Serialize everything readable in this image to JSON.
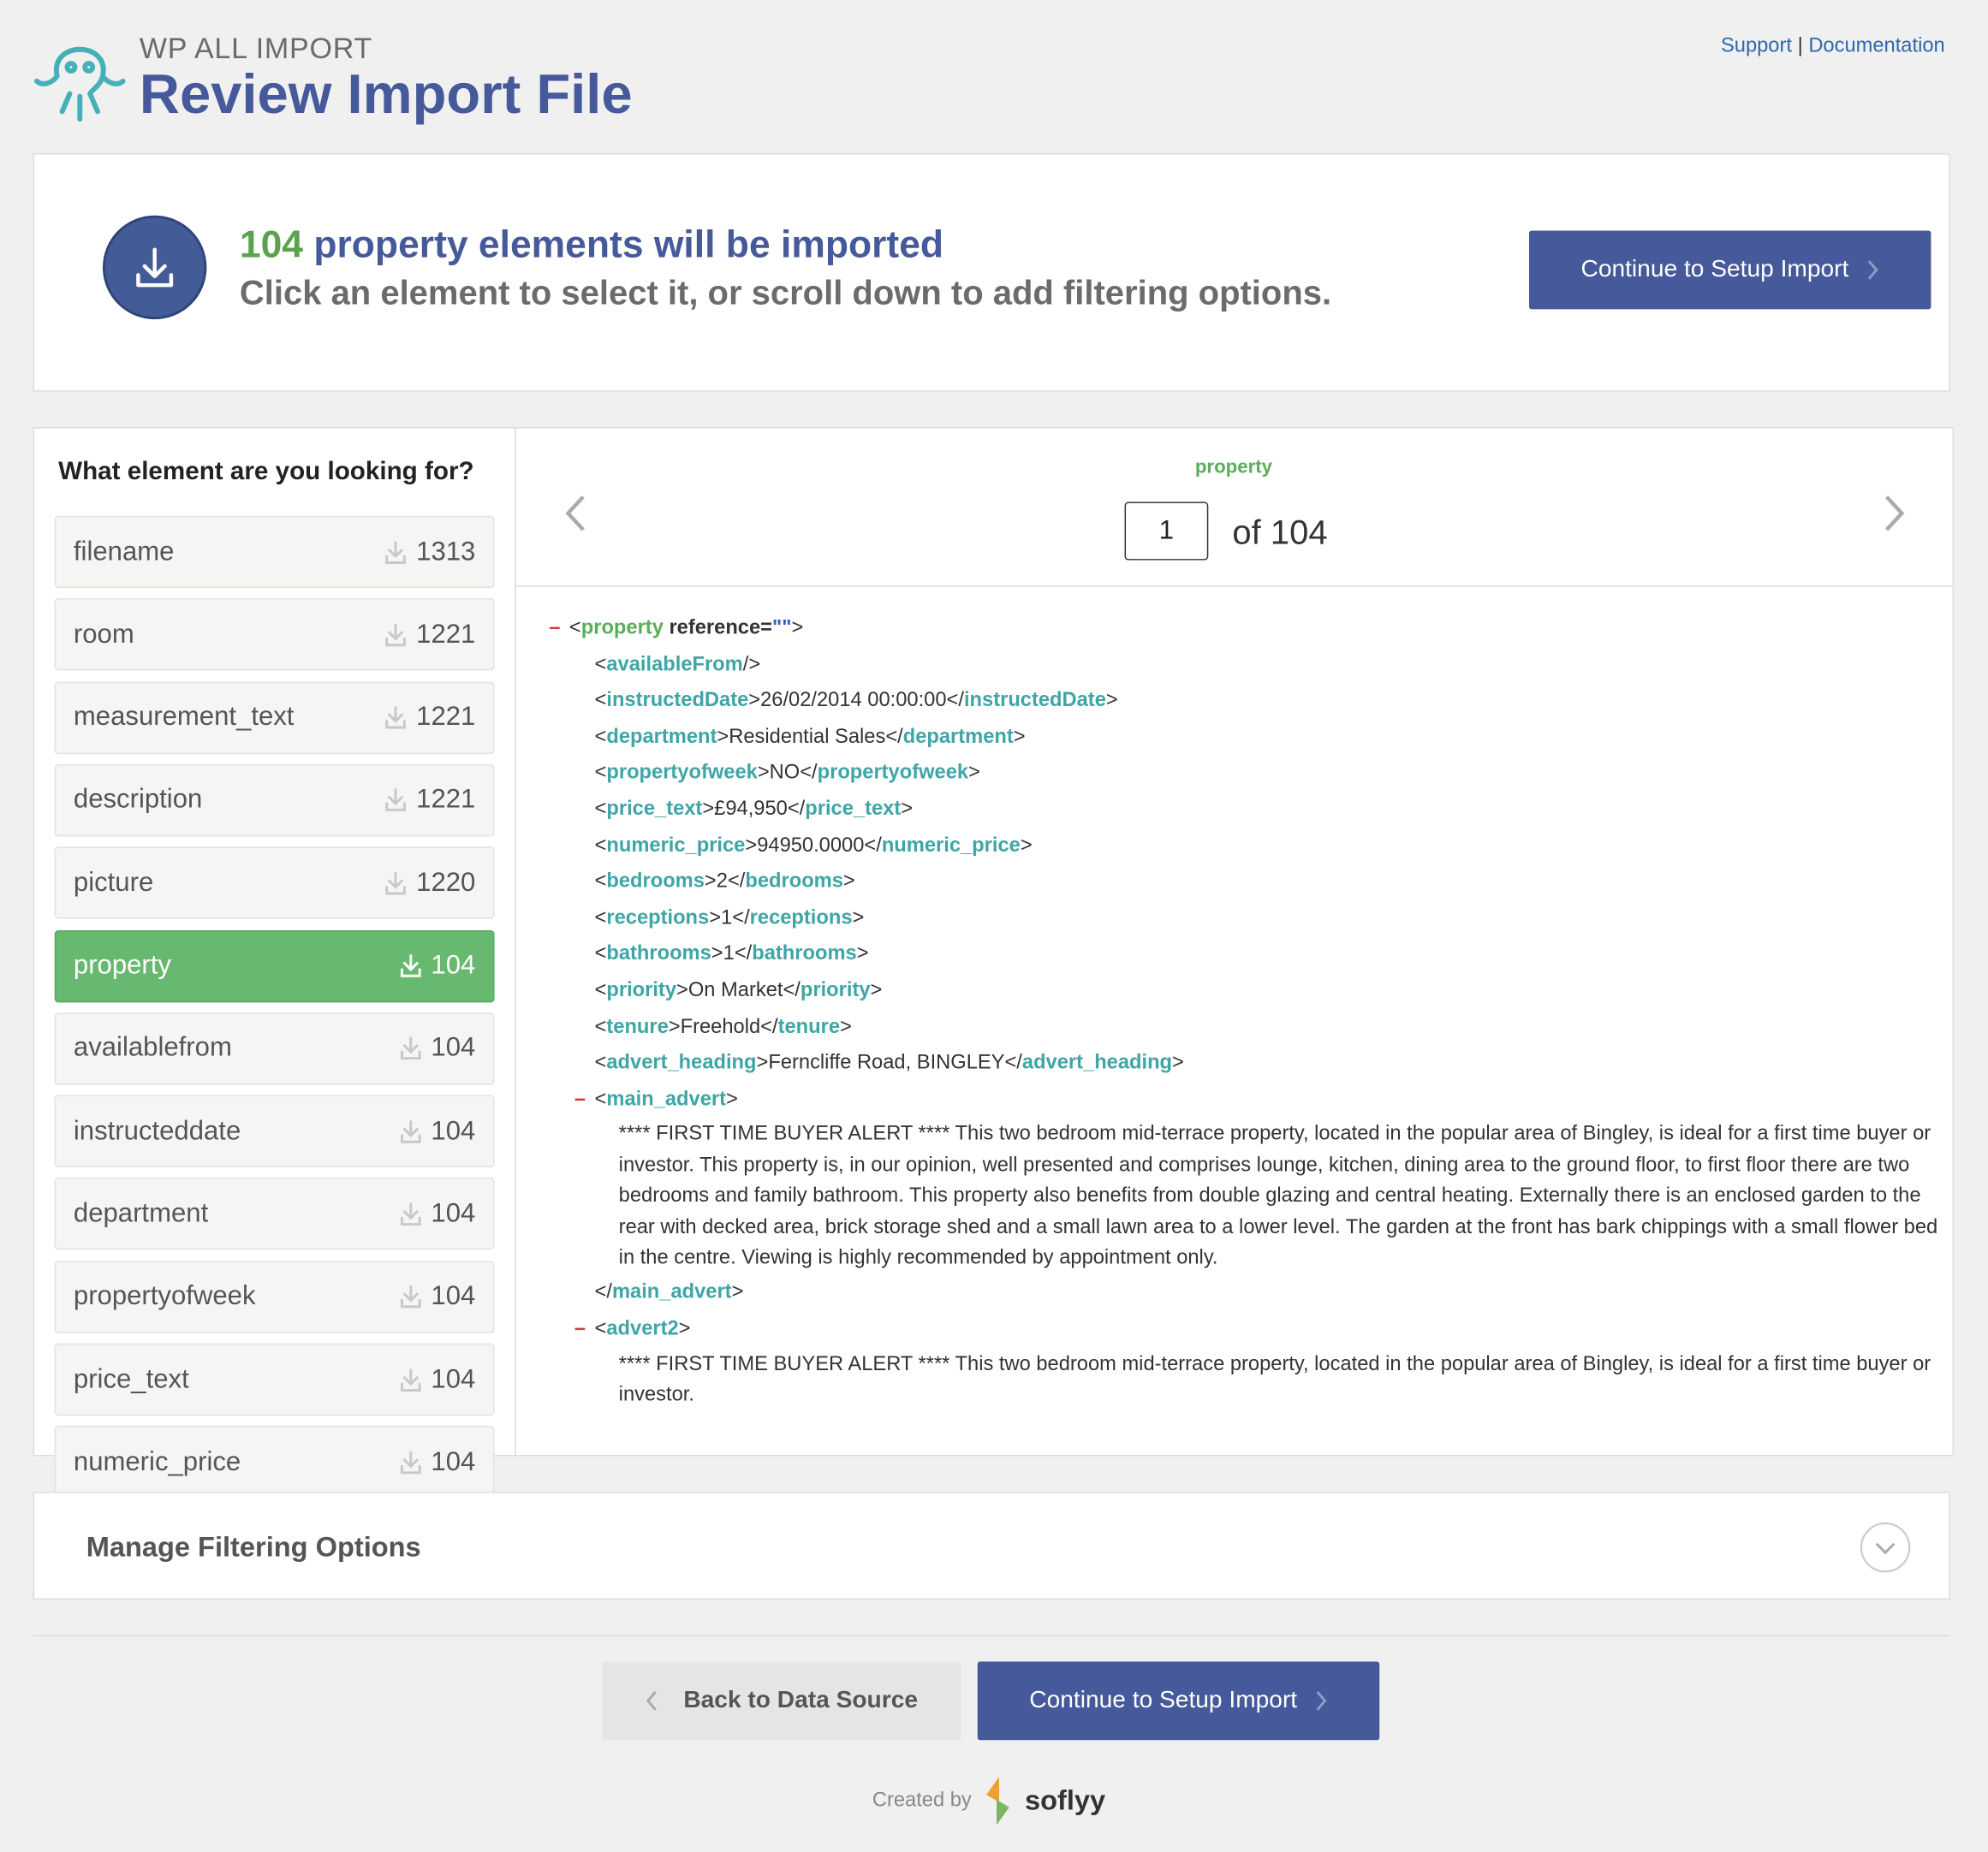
{
  "header": {
    "brand": "WP ALL IMPORT",
    "title": "Review Import File",
    "links": [
      "Support",
      "Documentation"
    ],
    "link_separator": "|"
  },
  "summary": {
    "count": "104",
    "headline": " property elements will be imported",
    "subtitle": "Click an element to select it, or scroll down to add filtering options.",
    "button": "Continue to Setup Import"
  },
  "sidebar": {
    "heading": "What element are you looking for?",
    "active": 5,
    "items": [
      {
        "name": "filename",
        "count": "1313"
      },
      {
        "name": "room",
        "count": "1221"
      },
      {
        "name": "measurement_text",
        "count": "1221"
      },
      {
        "name": "description",
        "count": "1221"
      },
      {
        "name": "picture",
        "count": "1220"
      },
      {
        "name": "property",
        "count": "104"
      },
      {
        "name": "availablefrom",
        "count": "104"
      },
      {
        "name": "instructeddate",
        "count": "104"
      },
      {
        "name": "department",
        "count": "104"
      },
      {
        "name": "propertyofweek",
        "count": "104"
      },
      {
        "name": "price_text",
        "count": "104"
      },
      {
        "name": "numeric_price",
        "count": "104"
      }
    ]
  },
  "viewer": {
    "element": "property",
    "page": "1",
    "of_label": "of",
    "total": "104",
    "lines": [
      {
        "level": 0,
        "toggle": "–",
        "segments": [
          {
            "text": "<",
            "kind": "p"
          },
          {
            "text": "property",
            "kind": "root"
          },
          {
            "text": " reference=",
            "kind": "attr"
          },
          {
            "text": "\"\"",
            "kind": "str"
          },
          {
            "text": ">",
            "kind": "p"
          }
        ]
      },
      {
        "level": 1,
        "segments": [
          {
            "text": "<",
            "kind": "p"
          },
          {
            "text": "availableFrom",
            "kind": "tag"
          },
          {
            "text": "/>",
            "kind": "p"
          }
        ]
      },
      {
        "level": 1,
        "segments": [
          {
            "text": "<",
            "kind": "p"
          },
          {
            "text": "instructedDate",
            "kind": "tag"
          },
          {
            "text": ">",
            "kind": "p"
          },
          {
            "text": "26/02/2014 00:00:00",
            "kind": "v"
          },
          {
            "text": "</",
            "kind": "p"
          },
          {
            "text": "instructedDate",
            "kind": "tag"
          },
          {
            "text": ">",
            "kind": "p"
          }
        ]
      },
      {
        "level": 1,
        "segments": [
          {
            "text": "<",
            "kind": "p"
          },
          {
            "text": "department",
            "kind": "tag"
          },
          {
            "text": ">",
            "kind": "p"
          },
          {
            "text": "Residential Sales",
            "kind": "v"
          },
          {
            "text": "</",
            "kind": "p"
          },
          {
            "text": "department",
            "kind": "tag"
          },
          {
            "text": ">",
            "kind": "p"
          }
        ]
      },
      {
        "level": 1,
        "segments": [
          {
            "text": "<",
            "kind": "p"
          },
          {
            "text": "propertyofweek",
            "kind": "tag"
          },
          {
            "text": ">",
            "kind": "p"
          },
          {
            "text": "NO",
            "kind": "v"
          },
          {
            "text": "</",
            "kind": "p"
          },
          {
            "text": "propertyofweek",
            "kind": "tag"
          },
          {
            "text": ">",
            "kind": "p"
          }
        ]
      },
      {
        "level": 1,
        "segments": [
          {
            "text": "<",
            "kind": "p"
          },
          {
            "text": "price_text",
            "kind": "tag"
          },
          {
            "text": ">",
            "kind": "p"
          },
          {
            "text": "£94,950",
            "kind": "v"
          },
          {
            "text": "</",
            "kind": "p"
          },
          {
            "text": "price_text",
            "kind": "tag"
          },
          {
            "text": ">",
            "kind": "p"
          }
        ]
      },
      {
        "level": 1,
        "segments": [
          {
            "text": "<",
            "kind": "p"
          },
          {
            "text": "numeric_price",
            "kind": "tag"
          },
          {
            "text": ">",
            "kind": "p"
          },
          {
            "text": "94950.0000",
            "kind": "v"
          },
          {
            "text": "</",
            "kind": "p"
          },
          {
            "text": "numeric_price",
            "kind": "tag"
          },
          {
            "text": ">",
            "kind": "p"
          }
        ]
      },
      {
        "level": 1,
        "segments": [
          {
            "text": "<",
            "kind": "p"
          },
          {
            "text": "bedrooms",
            "kind": "tag"
          },
          {
            "text": ">",
            "kind": "p"
          },
          {
            "text": "2",
            "kind": "v"
          },
          {
            "text": "</",
            "kind": "p"
          },
          {
            "text": "bedrooms",
            "kind": "tag"
          },
          {
            "text": ">",
            "kind": "p"
          }
        ]
      },
      {
        "level": 1,
        "segments": [
          {
            "text": "<",
            "kind": "p"
          },
          {
            "text": "receptions",
            "kind": "tag"
          },
          {
            "text": ">",
            "kind": "p"
          },
          {
            "text": "1",
            "kind": "v"
          },
          {
            "text": "</",
            "kind": "p"
          },
          {
            "text": "receptions",
            "kind": "tag"
          },
          {
            "text": ">",
            "kind": "p"
          }
        ]
      },
      {
        "level": 1,
        "segments": [
          {
            "text": "<",
            "kind": "p"
          },
          {
            "text": "bathrooms",
            "kind": "tag"
          },
          {
            "text": ">",
            "kind": "p"
          },
          {
            "text": "1",
            "kind": "v"
          },
          {
            "text": "</",
            "kind": "p"
          },
          {
            "text": "bathrooms",
            "kind": "tag"
          },
          {
            "text": ">",
            "kind": "p"
          }
        ]
      },
      {
        "level": 1,
        "segments": [
          {
            "text": "<",
            "kind": "p"
          },
          {
            "text": "priority",
            "kind": "tag"
          },
          {
            "text": ">",
            "kind": "p"
          },
          {
            "text": "On Market",
            "kind": "v"
          },
          {
            "text": "</",
            "kind": "p"
          },
          {
            "text": "priority",
            "kind": "tag"
          },
          {
            "text": ">",
            "kind": "p"
          }
        ]
      },
      {
        "level": 1,
        "segments": [
          {
            "text": "<",
            "kind": "p"
          },
          {
            "text": "tenure",
            "kind": "tag"
          },
          {
            "text": ">",
            "kind": "p"
          },
          {
            "text": "Freehold",
            "kind": "v"
          },
          {
            "text": "</",
            "kind": "p"
          },
          {
            "text": "tenure",
            "kind": "tag"
          },
          {
            "text": ">",
            "kind": "p"
          }
        ]
      },
      {
        "level": 1,
        "segments": [
          {
            "text": "<",
            "kind": "p"
          },
          {
            "text": "advert_heading",
            "kind": "tag"
          },
          {
            "text": ">",
            "kind": "p"
          },
          {
            "text": "Ferncliffe Road, BINGLEY",
            "kind": "v"
          },
          {
            "text": "</",
            "kind": "p"
          },
          {
            "text": "advert_heading",
            "kind": "tag"
          },
          {
            "text": ">",
            "kind": "p"
          }
        ]
      },
      {
        "level": 1,
        "toggle": "–",
        "segments": [
          {
            "text": "<",
            "kind": "p"
          },
          {
            "text": "main_advert",
            "kind": "tag"
          },
          {
            "text": ">",
            "kind": "p"
          }
        ]
      },
      {
        "level": 2,
        "segments": [
          {
            "text": "**** FIRST TIME BUYER ALERT **** This two bedroom mid-terrace property, located in the popular area of Bingley, is ideal for a first time buyer or investor. This property is, in our opinion, well presented and comprises lounge, kitchen, dining area to the ground floor, to first floor there are two bedrooms and family bathroom. This property also benefits from double glazing and central heating. Externally there is an enclosed garden to the rear with decked area, brick storage shed and a small lawn area to a lower level. The garden at the front has bark chippings with a small flower bed in the centre. Viewing is highly recommended by appointment only.",
            "kind": "text"
          }
        ]
      },
      {
        "level": 1,
        "segments": [
          {
            "text": "</",
            "kind": "p"
          },
          {
            "text": "main_advert",
            "kind": "tag"
          },
          {
            "text": ">",
            "kind": "p"
          }
        ]
      },
      {
        "level": 1,
        "toggle": "–",
        "segments": [
          {
            "text": "<",
            "kind": "p"
          },
          {
            "text": "advert2",
            "kind": "tag"
          },
          {
            "text": ">",
            "kind": "p"
          }
        ]
      },
      {
        "level": 2,
        "segments": [
          {
            "text": "**** FIRST TIME BUYER ALERT **** This two bedroom mid-terrace property, located in the popular area of Bingley, is ideal for a first time buyer or investor.",
            "kind": "text"
          }
        ]
      }
    ]
  },
  "filtering": {
    "title": "Manage Filtering Options"
  },
  "footer": {
    "back_button": "Back to Data Source",
    "continue_button": "Continue to Setup Import",
    "created_by": "Created by",
    "brand": "soflyy"
  }
}
